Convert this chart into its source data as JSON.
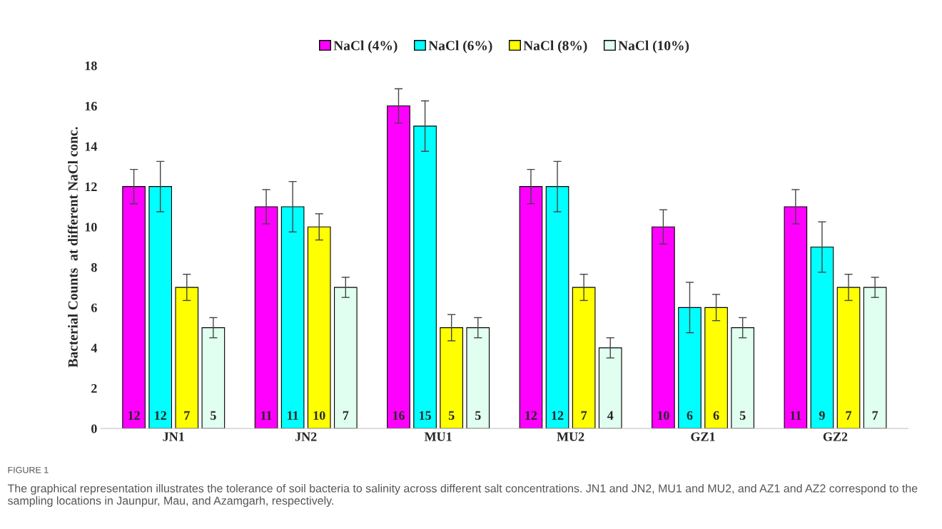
{
  "chart_data": {
    "type": "bar",
    "ylabel": "Bacterial Counts  at different NaCl conc.",
    "categories": [
      "JN1",
      "JN2",
      "MU1",
      "MU2",
      "GZ1",
      "GZ2"
    ],
    "series": [
      {
        "name": "NaCl (4%)",
        "color": "#ff00ff",
        "values": [
          12,
          11,
          16,
          12,
          10,
          11
        ],
        "errors": [
          0.85,
          0.85,
          0.85,
          0.85,
          0.85,
          0.85
        ]
      },
      {
        "name": "NaCl (6%)",
        "color": "#00ffff",
        "values": [
          12,
          11,
          15,
          12,
          6,
          9
        ],
        "errors": [
          1.25,
          1.25,
          1.25,
          1.25,
          1.25,
          1.25
        ]
      },
      {
        "name": "NaCl (8%)",
        "color": "#ffff00",
        "values": [
          7,
          10,
          5,
          7,
          6,
          7
        ],
        "errors": [
          0.65,
          0.65,
          0.65,
          0.65,
          0.65,
          0.65
        ]
      },
      {
        "name": "NaCl (10%)",
        "color": "#e0fff0",
        "values": [
          5,
          7,
          5,
          4,
          5,
          7
        ],
        "errors": [
          0.5,
          0.5,
          0.5,
          0.5,
          0.5,
          0.5
        ]
      }
    ],
    "ylim": [
      0,
      18
    ],
    "yticks": [
      0,
      2,
      4,
      6,
      8,
      10,
      12,
      14,
      16,
      18
    ],
    "data_labels": true,
    "legend": "top",
    "grid": false,
    "annotations": [
      "FIGURE 1",
      "The graphical representation illustrates the tolerance of soil bacteria to salinity across different salt concentrations. JN1 and JN2, MU1 and MU2, and AZ1 and AZ2 correspond to the sampling locations in Jaunpur, Mau, and Azamgarh, respectively."
    ]
  }
}
